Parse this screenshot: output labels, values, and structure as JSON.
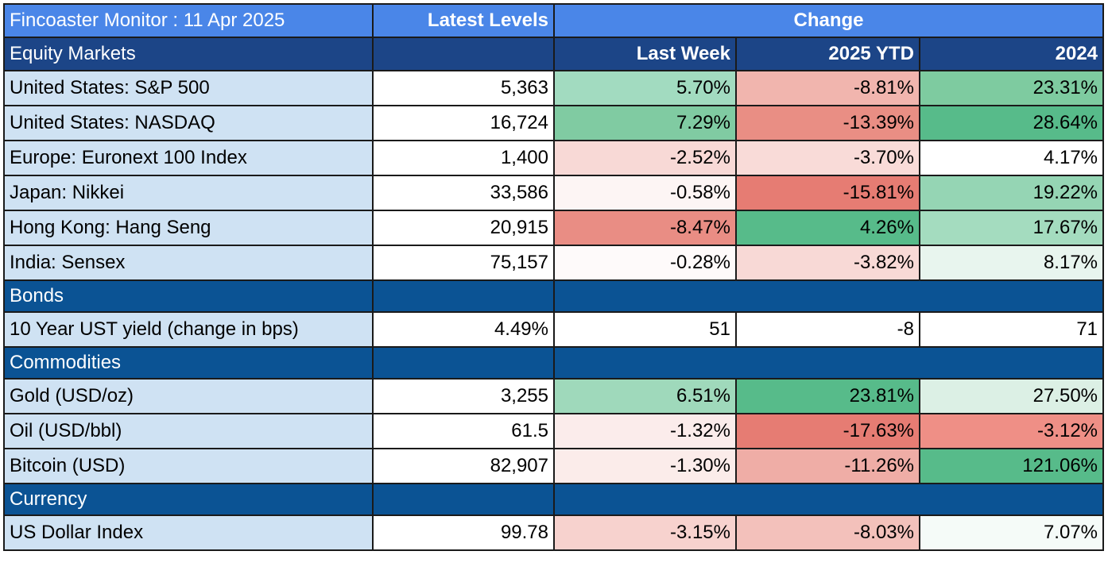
{
  "header": {
    "title": "Fincoaster Monitor : 11 Apr 2025",
    "levels_label": "Latest Levels",
    "change_label": "Change"
  },
  "equity": {
    "section_label": "Equity Markets",
    "col_last_week": "Last Week",
    "col_ytd": "2025 YTD",
    "col_2024": "2024",
    "rows": [
      {
        "name": "United States: S&P 500",
        "level": "5,363",
        "last_week": "5.70%",
        "ytd": "-8.81%",
        "y2024": "23.31%",
        "c_lw": "#a2dbc0",
        "c_ytd": "#f1b5ae",
        "c_24": "#7ecba0"
      },
      {
        "name": "United States: NASDAQ",
        "level": "16,724",
        "last_week": "7.29%",
        "ytd": "-13.39%",
        "y2024": "28.64%",
        "c_lw": "#80cba2",
        "c_ytd": "#e98e84",
        "c_24": "#57bb8a"
      },
      {
        "name": "Europe: Euronext 100 Index",
        "level": "1,400",
        "last_week": "-2.52%",
        "ytd": "-3.70%",
        "y2024": "4.17%",
        "c_lw": "#f8d9d6",
        "c_ytd": "#f9dbd8",
        "c_24": "#ffffff"
      },
      {
        "name": "Japan: Nikkei",
        "level": "33,586",
        "last_week": "-0.58%",
        "ytd": "-15.81%",
        "y2024": "19.22%",
        "c_lw": "#fdf5f4",
        "c_ytd": "#e67c73",
        "c_24": "#95d5b4"
      },
      {
        "name": "Hong Kong: Hang Seng",
        "level": "20,915",
        "last_week": "-8.47%",
        "ytd": "4.26%",
        "y2024": "17.67%",
        "c_lw": "#e98d84",
        "c_ytd": "#57bb8a",
        "c_24": "#a4dcbf"
      },
      {
        "name": "India: Sensex",
        "level": "75,157",
        "last_week": "-0.28%",
        "ytd": "-3.82%",
        "y2024": "8.17%",
        "c_lw": "#fefafa",
        "c_ytd": "#f8d9d6",
        "c_24": "#e8f5ee"
      }
    ]
  },
  "bonds": {
    "section_label": "Bonds",
    "rows": [
      {
        "name": "10 Year UST yield (change in bps)",
        "level": "4.49%",
        "last_week": "51",
        "ytd": "-8",
        "y2024": "71",
        "c_lw": "#ffffff",
        "c_ytd": "#ffffff",
        "c_24": "#ffffff"
      }
    ]
  },
  "commodities": {
    "section_label": "Commodities",
    "rows": [
      {
        "name": "Gold (USD/oz)",
        "level": "3,255",
        "last_week": "6.51%",
        "ytd": "23.81%",
        "y2024": "27.50%",
        "c_lw": "#9fd9bb",
        "c_ytd": "#57bb8a",
        "c_24": "#dcf0e5"
      },
      {
        "name": "Oil (USD/bbl)",
        "level": "61.5",
        "last_week": "-1.32%",
        "ytd": "-17.63%",
        "y2024": "-3.12%",
        "c_lw": "#fbeceb",
        "c_ytd": "#e67c73",
        "c_24": "#ef8f86"
      },
      {
        "name": "Bitcoin (USD)",
        "level": "82,907",
        "last_week": "-1.30%",
        "ytd": "-11.26%",
        "y2024": "121.06%",
        "c_lw": "#fbecea",
        "c_ytd": "#efada6",
        "c_24": "#57bb8a"
      }
    ]
  },
  "currency": {
    "section_label": "Currency",
    "rows": [
      {
        "name": "US Dollar Index",
        "level": "99.78",
        "last_week": "-3.15%",
        "ytd": "-8.03%",
        "y2024": "7.07%",
        "c_lw": "#f7d2ce",
        "c_ytd": "#f3c1bb",
        "c_24": "#f5fbf8"
      }
    ]
  }
}
